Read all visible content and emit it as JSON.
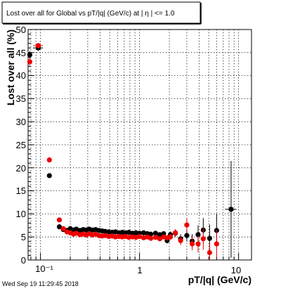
{
  "chart_data": {
    "type": "scatter",
    "title": "Lost over all for  Global vs pT/|q| (GeV/c) at |   η | <= 1.0",
    "xlabel": "pT/|q| (GeV/c)",
    "ylabel": "Lost over all (%)",
    "x_scale": "log",
    "xlim": [
      0.075,
      13.5
    ],
    "ylim": [
      0,
      50
    ],
    "grid": true,
    "x_tick_labels": [
      "10⁻¹",
      "1",
      "10"
    ],
    "y_tick_labels": [
      "0",
      "5",
      "10",
      "15",
      "20",
      "25",
      "30",
      "35",
      "40",
      "45",
      "50"
    ],
    "series": [
      {
        "color": "#000000",
        "points": [
          {
            "x": 0.078,
            "y": 44.5,
            "ey": 0.8
          },
          {
            "x": 0.095,
            "y": 46.0,
            "ey": 0.6,
            "ex": 0.011
          },
          {
            "x": 0.123,
            "y": 18.3,
            "ey": 0.4
          },
          {
            "x": 0.155,
            "y": 7.2,
            "ey": 0.3
          },
          {
            "x": 0.17,
            "y": 6.6
          },
          {
            "x": 0.185,
            "y": 6.4
          },
          {
            "x": 0.2,
            "y": 6.8
          },
          {
            "x": 0.215,
            "y": 6.5
          },
          {
            "x": 0.23,
            "y": 6.7
          },
          {
            "x": 0.25,
            "y": 6.4
          },
          {
            "x": 0.27,
            "y": 6.6
          },
          {
            "x": 0.29,
            "y": 6.5
          },
          {
            "x": 0.31,
            "y": 6.7
          },
          {
            "x": 0.335,
            "y": 6.5
          },
          {
            "x": 0.36,
            "y": 6.6
          },
          {
            "x": 0.39,
            "y": 6.4
          },
          {
            "x": 0.42,
            "y": 6.3
          },
          {
            "x": 0.45,
            "y": 6.2
          },
          {
            "x": 0.49,
            "y": 6.1
          },
          {
            "x": 0.53,
            "y": 6.0
          },
          {
            "x": 0.57,
            "y": 6.1
          },
          {
            "x": 0.62,
            "y": 5.9
          },
          {
            "x": 0.67,
            "y": 6.0
          },
          {
            "x": 0.72,
            "y": 5.9
          },
          {
            "x": 0.78,
            "y": 6.0
          },
          {
            "x": 0.85,
            "y": 5.8
          },
          {
            "x": 0.92,
            "y": 5.9
          },
          {
            "x": 1.0,
            "y": 5.8
          },
          {
            "x": 1.1,
            "y": 5.9
          },
          {
            "x": 1.2,
            "y": 5.7
          },
          {
            "x": 1.3,
            "y": 5.6
          },
          {
            "x": 1.45,
            "y": 5.8
          },
          {
            "x": 1.6,
            "y": 5.5
          },
          {
            "x": 1.75,
            "y": 5.7
          },
          {
            "x": 1.9,
            "y": 4.2,
            "ey": 0.6
          },
          {
            "x": 2.05,
            "y": 5.5,
            "ey": 0.7
          },
          {
            "x": 2.3,
            "y": 5.8,
            "ey": 0.8
          },
          {
            "x": 2.6,
            "y": 4.6,
            "ey": 1.0
          },
          {
            "x": 3.0,
            "y": 5.3,
            "ey": 1.3
          },
          {
            "x": 3.4,
            "y": 4.1,
            "ey": 1.5
          },
          {
            "x": 3.9,
            "y": 5.5,
            "ey": 2.0
          },
          {
            "x": 4.4,
            "y": 6.5,
            "ey": 2.6
          },
          {
            "x": 5.1,
            "y": 4.7,
            "ey": 3.0
          },
          {
            "x": 6.0,
            "y": 6.4,
            "ey": 3.6
          },
          {
            "x": 8.4,
            "y": 11.0,
            "ey": 10.5,
            "ex": 1.1
          }
        ]
      },
      {
        "color": "#ee0000",
        "points": [
          {
            "x": 0.078,
            "y": 43.0,
            "ey": 0.8
          },
          {
            "x": 0.095,
            "y": 46.5,
            "ey": 0.6,
            "ex": 0.011
          },
          {
            "x": 0.123,
            "y": 21.7,
            "ey": 0.4
          },
          {
            "x": 0.155,
            "y": 8.7,
            "ey": 0.3
          },
          {
            "x": 0.17,
            "y": 6.8
          },
          {
            "x": 0.185,
            "y": 6.1
          },
          {
            "x": 0.2,
            "y": 5.9
          },
          {
            "x": 0.215,
            "y": 5.6
          },
          {
            "x": 0.23,
            "y": 5.8
          },
          {
            "x": 0.25,
            "y": 5.5
          },
          {
            "x": 0.27,
            "y": 5.6
          },
          {
            "x": 0.29,
            "y": 5.4
          },
          {
            "x": 0.31,
            "y": 5.7
          },
          {
            "x": 0.335,
            "y": 5.4
          },
          {
            "x": 0.36,
            "y": 5.6
          },
          {
            "x": 0.39,
            "y": 5.3
          },
          {
            "x": 0.42,
            "y": 5.2
          },
          {
            "x": 0.45,
            "y": 5.3
          },
          {
            "x": 0.49,
            "y": 5.1
          },
          {
            "x": 0.53,
            "y": 5.2
          },
          {
            "x": 0.57,
            "y": 5.0
          },
          {
            "x": 0.62,
            "y": 5.1
          },
          {
            "x": 0.67,
            "y": 5.0
          },
          {
            "x": 0.72,
            "y": 5.1
          },
          {
            "x": 0.78,
            "y": 4.9
          },
          {
            "x": 0.85,
            "y": 5.0
          },
          {
            "x": 0.92,
            "y": 4.9
          },
          {
            "x": 1.0,
            "y": 5.1
          },
          {
            "x": 1.1,
            "y": 4.8
          },
          {
            "x": 1.2,
            "y": 5.0
          },
          {
            "x": 1.3,
            "y": 4.7
          },
          {
            "x": 1.45,
            "y": 4.9
          },
          {
            "x": 1.6,
            "y": 4.6
          },
          {
            "x": 1.75,
            "y": 5.0
          },
          {
            "x": 1.9,
            "y": 4.8,
            "ey": 0.6
          },
          {
            "x": 2.05,
            "y": 5.0,
            "ey": 0.7
          },
          {
            "x": 2.3,
            "y": 5.9,
            "ey": 0.8
          },
          {
            "x": 2.6,
            "y": 4.2,
            "ey": 1.0
          },
          {
            "x": 3.0,
            "y": 7.6,
            "ey": 1.4
          },
          {
            "x": 3.4,
            "y": 3.5,
            "ey": 1.4
          },
          {
            "x": 3.9,
            "y": 3.5,
            "ey": 1.8
          },
          {
            "x": 4.4,
            "y": 4.6,
            "ey": 2.4
          },
          {
            "x": 5.1,
            "y": 1.6,
            "ey": 2.2
          },
          {
            "x": 6.0,
            "y": 3.5,
            "ey": 3.0
          }
        ]
      }
    ]
  },
  "footer": {
    "timestamp": "Wed Sep 19 11:29:45 2018"
  }
}
